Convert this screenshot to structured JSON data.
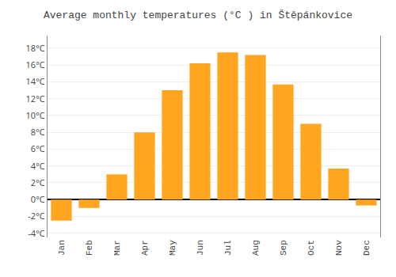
{
  "chart_data": {
    "type": "bar",
    "title": "Average monthly temperatures (°C ) in Štěpánkovice",
    "categories": [
      "Jan",
      "Feb",
      "Mar",
      "Apr",
      "May",
      "Jun",
      "Jul",
      "Aug",
      "Sep",
      "Oct",
      "Nov",
      "Dec"
    ],
    "values": [
      -2.5,
      -1.0,
      3.0,
      8.0,
      13.0,
      16.2,
      17.5,
      17.2,
      13.7,
      9.0,
      3.7,
      -0.7
    ],
    "color": "#FFA520",
    "ylim": [
      -4.5,
      19.5
    ],
    "yticks": [
      {
        "value": -4,
        "label": "-4°C"
      },
      {
        "value": -2,
        "label": "-2°C"
      },
      {
        "value": 0,
        "label": "0°C"
      },
      {
        "value": 2,
        "label": "2°C"
      },
      {
        "value": 4,
        "label": "4°C"
      },
      {
        "value": 6,
        "label": "6°C"
      },
      {
        "value": 8,
        "label": "8°C"
      },
      {
        "value": 10,
        "label": "10°C"
      },
      {
        "value": 12,
        "label": "12°C"
      },
      {
        "value": 14,
        "label": "14°C"
      },
      {
        "value": 16,
        "label": "16°C"
      },
      {
        "value": 18,
        "label": "18°C"
      }
    ],
    "grid": true
  }
}
